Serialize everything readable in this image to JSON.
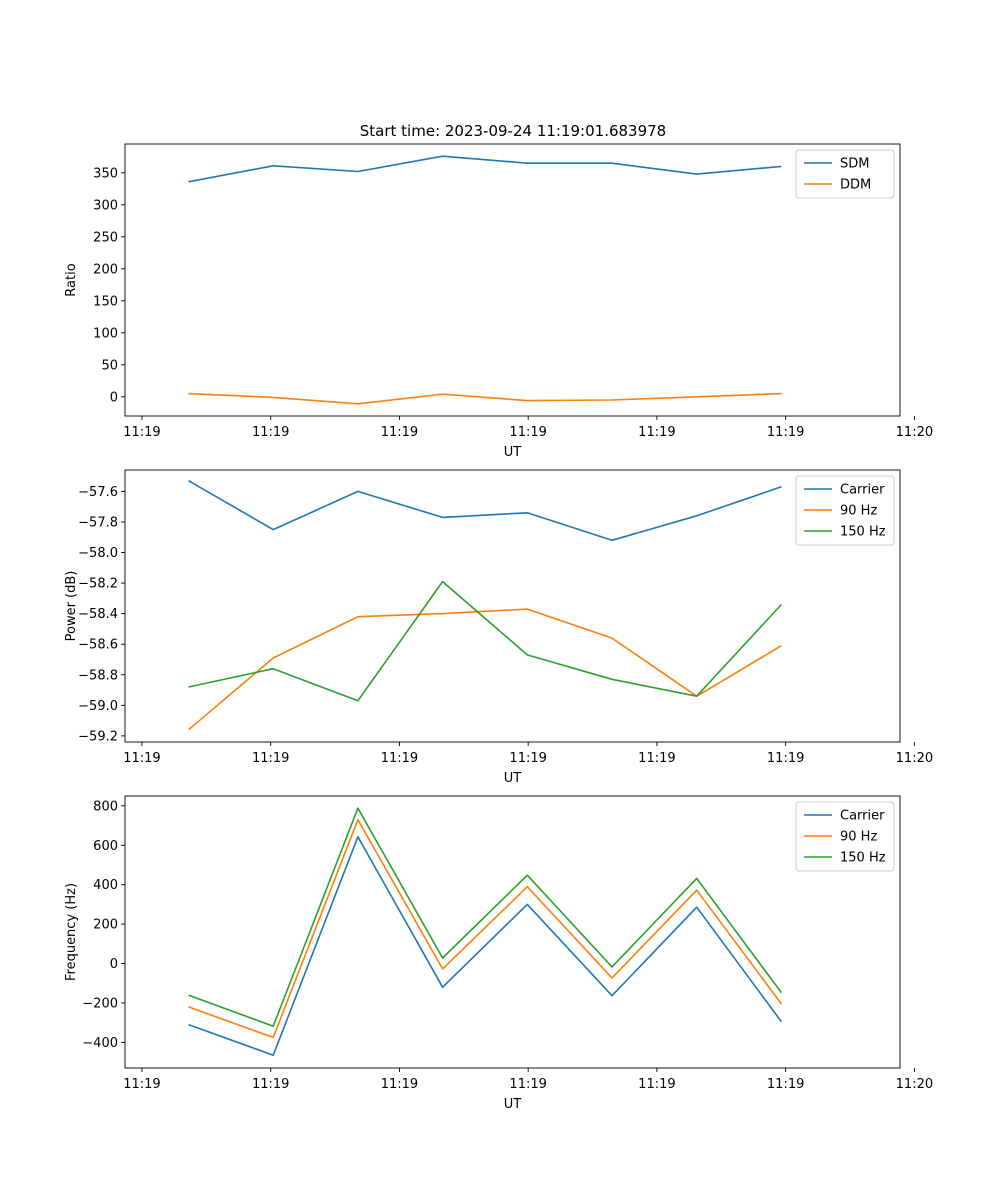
{
  "colors": {
    "blue": "#1f77b4",
    "orange": "#ff7f0e",
    "green": "#2ca02c"
  },
  "chart_data": [
    {
      "type": "line",
      "title": "Start time: 2023-09-24 11:19:01.683978",
      "xlabel": "UT",
      "ylabel": "Ratio",
      "x": [
        1,
        2,
        3,
        4,
        5,
        6,
        7,
        8
      ],
      "xlim": [
        0.25,
        9.4
      ],
      "xticks": [
        {
          "x": 0.45,
          "label": "11:19"
        },
        {
          "x": 1.97,
          "label": "11:19"
        },
        {
          "x": 3.49,
          "label": "11:19"
        },
        {
          "x": 5.01,
          "label": "11:19"
        },
        {
          "x": 6.53,
          "label": "11:19"
        },
        {
          "x": 8.05,
          "label": "11:19"
        },
        {
          "x": 9.57,
          "label": "11:20"
        }
      ],
      "ylim": [
        -30,
        395
      ],
      "yticks": [
        {
          "v": 0,
          "label": "0"
        },
        {
          "v": 50,
          "label": "50"
        },
        {
          "v": 100,
          "label": "100"
        },
        {
          "v": 150,
          "label": "150"
        },
        {
          "v": 200,
          "label": "200"
        },
        {
          "v": 250,
          "label": "250"
        },
        {
          "v": 300,
          "label": "300"
        },
        {
          "v": 350,
          "label": "350"
        }
      ],
      "legend_position": "upper-right",
      "series": [
        {
          "name": "SDM",
          "color": "#1f77b4",
          "values": [
            336,
            361,
            352,
            376,
            365,
            365,
            348,
            360
          ]
        },
        {
          "name": "DDM",
          "color": "#ff7f0e",
          "values": [
            5,
            -1,
            -11,
            4,
            -6,
            -5,
            0,
            5
          ]
        }
      ]
    },
    {
      "type": "line",
      "title": "",
      "xlabel": "UT",
      "ylabel": "Power (dB)",
      "x": [
        1,
        2,
        3,
        4,
        5,
        6,
        7,
        8
      ],
      "xlim": [
        0.25,
        9.4
      ],
      "xticks": [
        {
          "x": 0.45,
          "label": "11:19"
        },
        {
          "x": 1.97,
          "label": "11:19"
        },
        {
          "x": 3.49,
          "label": "11:19"
        },
        {
          "x": 5.01,
          "label": "11:19"
        },
        {
          "x": 6.53,
          "label": "11:19"
        },
        {
          "x": 8.05,
          "label": "11:19"
        },
        {
          "x": 9.57,
          "label": "11:20"
        }
      ],
      "ylim": [
        -59.24,
        -57.46
      ],
      "yticks": [
        {
          "v": -59.2,
          "label": "−59.2"
        },
        {
          "v": -59.0,
          "label": "−59.0"
        },
        {
          "v": -58.8,
          "label": "−58.8"
        },
        {
          "v": -58.6,
          "label": "−58.6"
        },
        {
          "v": -58.4,
          "label": "−58.4"
        },
        {
          "v": -58.2,
          "label": "−58.2"
        },
        {
          "v": -58.0,
          "label": "−58.0"
        },
        {
          "v": -57.8,
          "label": "−57.8"
        },
        {
          "v": -57.6,
          "label": "−57.6"
        }
      ],
      "legend_position": "upper-right",
      "series": [
        {
          "name": "Carrier",
          "color": "#1f77b4",
          "values": [
            -57.53,
            -57.85,
            -57.6,
            -57.77,
            -57.74,
            -57.92,
            -57.76,
            -57.57
          ]
        },
        {
          "name": "90 Hz",
          "color": "#ff7f0e",
          "values": [
            -59.16,
            -58.69,
            -58.42,
            -58.4,
            -58.37,
            -58.56,
            -58.94,
            -58.61
          ]
        },
        {
          "name": "150 Hz",
          "color": "#2ca02c",
          "values": [
            -58.88,
            -58.76,
            -58.97,
            -58.19,
            -58.67,
            -58.83,
            -58.94,
            -58.34
          ]
        }
      ]
    },
    {
      "type": "line",
      "title": "",
      "xlabel": "UT",
      "ylabel": "Frequency (Hz)",
      "x": [
        1,
        2,
        3,
        4,
        5,
        6,
        7,
        8
      ],
      "xlim": [
        0.25,
        9.4
      ],
      "xticks": [
        {
          "x": 0.45,
          "label": "11:19"
        },
        {
          "x": 1.97,
          "label": "11:19"
        },
        {
          "x": 3.49,
          "label": "11:19"
        },
        {
          "x": 5.01,
          "label": "11:19"
        },
        {
          "x": 6.53,
          "label": "11:19"
        },
        {
          "x": 8.05,
          "label": "11:19"
        },
        {
          "x": 9.57,
          "label": "11:20"
        }
      ],
      "ylim": [
        -530,
        850
      ],
      "yticks": [
        {
          "v": -400,
          "label": "−400"
        },
        {
          "v": -200,
          "label": "−200"
        },
        {
          "v": 0,
          "label": "0"
        },
        {
          "v": 200,
          "label": "200"
        },
        {
          "v": 400,
          "label": "400"
        },
        {
          "v": 600,
          "label": "600"
        },
        {
          "v": 800,
          "label": "800"
        }
      ],
      "legend_position": "upper-right",
      "series": [
        {
          "name": "Carrier",
          "color": "#1f77b4",
          "values": [
            -310,
            -465,
            643,
            -120,
            300,
            -163,
            286,
            -295
          ]
        },
        {
          "name": "90 Hz",
          "color": "#ff7f0e",
          "values": [
            -220,
            -375,
            730,
            -27,
            390,
            -73,
            372,
            -205
          ]
        },
        {
          "name": "150 Hz",
          "color": "#2ca02c",
          "values": [
            -160,
            -318,
            788,
            28,
            448,
            -17,
            432,
            -148
          ]
        }
      ]
    }
  ]
}
